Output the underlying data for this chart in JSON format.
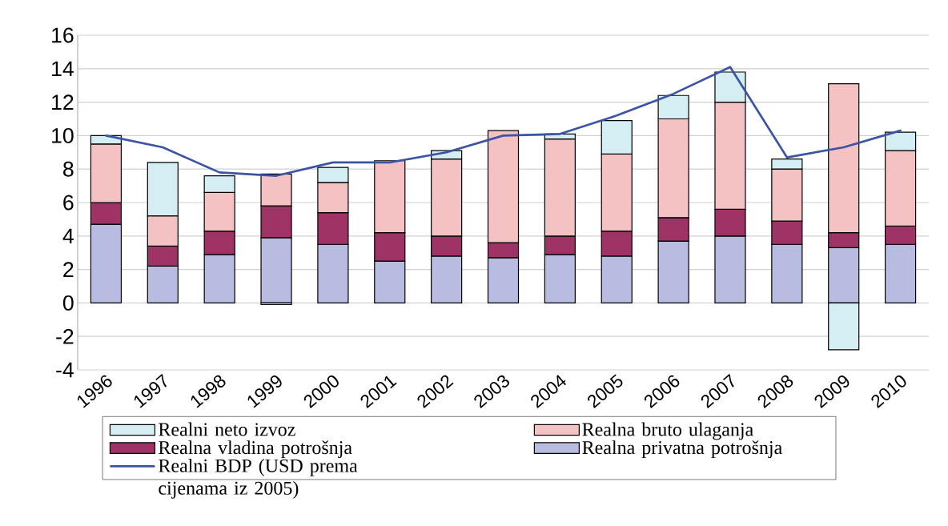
{
  "chart_data": {
    "type": "bar",
    "stacked": true,
    "categories": [
      "1996",
      "1997",
      "1998",
      "1999",
      "2000",
      "2001",
      "2002",
      "2003",
      "2004",
      "2005",
      "2006",
      "2007",
      "2008",
      "2009",
      "2010"
    ],
    "series": [
      {
        "name": "Realna privatna potrošnja",
        "color": "#b8bce0",
        "values": [
          4.7,
          2.2,
          2.9,
          3.9,
          3.5,
          2.5,
          2.8,
          2.7,
          2.9,
          2.8,
          3.7,
          4.0,
          3.5,
          3.3,
          3.5
        ]
      },
      {
        "name": "Realna vladina potrošnja",
        "color": "#9e3366",
        "values": [
          1.3,
          1.2,
          1.4,
          1.9,
          1.9,
          1.7,
          1.2,
          0.9,
          1.1,
          1.5,
          1.4,
          1.6,
          1.4,
          0.9,
          1.1
        ]
      },
      {
        "name": "Realna bruto ulaganja",
        "color": "#f4c2c2",
        "values": [
          3.5,
          1.8,
          2.3,
          1.9,
          1.8,
          4.3,
          4.6,
          6.7,
          5.8,
          4.6,
          5.9,
          6.4,
          3.1,
          8.9,
          4.5
        ]
      },
      {
        "name": "Realni neto izvoz",
        "color": "#d5eef4",
        "values": [
          0.5,
          3.2,
          1.0,
          -0.1,
          0.9,
          0,
          0.5,
          0,
          0.3,
          2.0,
          1.4,
          1.8,
          0.6,
          -2.8,
          1.1
        ]
      },
      {
        "name": "Realni BDP (USD prema cijenama iz 2005)",
        "type": "line",
        "color": "#3b55a5",
        "values": [
          10.0,
          9.3,
          7.8,
          7.6,
          8.4,
          8.4,
          9.0,
          10.0,
          10.1,
          11.2,
          12.5,
          14.1,
          8.7,
          9.3,
          10.3
        ]
      }
    ],
    "ylim": [
      -4,
      16
    ],
    "yticks": [
      -4,
      -2,
      0,
      2,
      4,
      6,
      8,
      10,
      12,
      14,
      16
    ],
    "grid": "y",
    "legend": "bottom"
  }
}
